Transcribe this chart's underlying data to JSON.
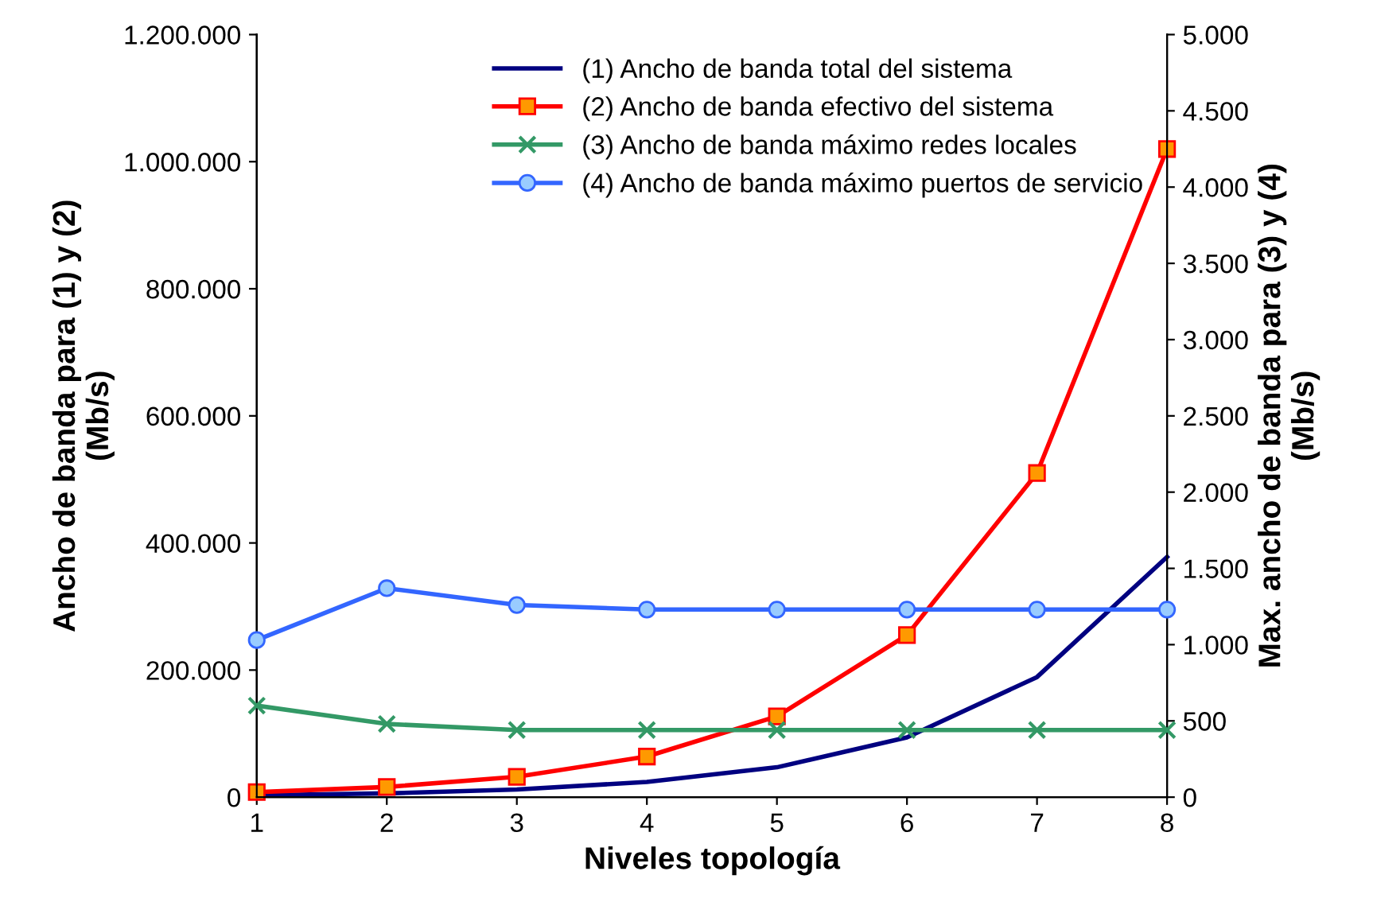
{
  "chart_data": {
    "type": "line",
    "xlabel": "Niveles topología",
    "ylabel": "Ancho de banda para (1) y (2)\n(Mb/s)",
    "y2label": "Max. ancho de banda para (3) y (4)\n(Mb/s)",
    "x": [
      1,
      2,
      3,
      4,
      5,
      6,
      7,
      8
    ],
    "xlim": [
      1,
      8
    ],
    "xticks": [
      1,
      2,
      3,
      4,
      5,
      6,
      7,
      8
    ],
    "ylim": [
      0,
      1200000
    ],
    "yticks": [
      0,
      {
        "value": 200000,
        "label": "200.000"
      },
      {
        "value": 400000,
        "label": "400.000"
      },
      {
        "value": 600000,
        "label": "600.000"
      },
      {
        "value": 800000,
        "label": "800.000"
      },
      {
        "value": 1000000,
        "label": "1.000.000"
      },
      {
        "value": 1200000,
        "label": "1.200.000"
      }
    ],
    "y2lim": [
      0,
      5000
    ],
    "y2ticks": [
      0,
      500,
      {
        "value": 1000,
        "label": "1.000"
      },
      {
        "value": 1500,
        "label": "1.500"
      },
      {
        "value": 2000,
        "label": "2.000"
      },
      {
        "value": 2500,
        "label": "2.500"
      },
      {
        "value": 3000,
        "label": "3.000"
      },
      {
        "value": 3500,
        "label": "3.500"
      },
      {
        "value": 4000,
        "label": "4.000"
      },
      {
        "value": 4500,
        "label": "4.500"
      },
      {
        "value": 5000,
        "label": "5.000"
      }
    ],
    "grid": false,
    "legend": "top right",
    "line_style": "solid",
    "series": [
      {
        "name": "(1) Ancho de banda total del sistema",
        "color": "#000080",
        "marker": "none",
        "values": [
          3000,
          6000,
          12000,
          24000,
          47000,
          94000,
          189000,
          378000
        ]
      },
      {
        "name": "(2) Ancho de banda efectivo del sistema",
        "color": "#ff0000",
        "marker": "square",
        "values": [
          8000,
          16000,
          32000,
          64000,
          127000,
          255000,
          510000,
          1020000
        ]
      },
      {
        "name": "(3) Ancho de banda máximo redes locales",
        "color": "#339966",
        "marker": "cross",
        "axis": "y2",
        "values": [
          600,
          480,
          440,
          440,
          440,
          440,
          440,
          440
        ]
      },
      {
        "name": "(4) Ancho de banda máximo puertos de servicio",
        "color": "#3366ff",
        "marker": "circle",
        "axis": "y2",
        "values": [
          1030,
          1370,
          1260,
          1230,
          1230,
          1230,
          1230,
          1230
        ]
      }
    ]
  }
}
